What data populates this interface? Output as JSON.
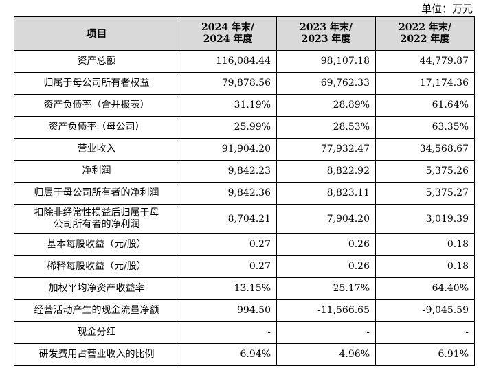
{
  "unit": "单位：万元",
  "header": {
    "item": "项目",
    "col2024_line1": "2024 年末/",
    "col2024_line2": "2024 年度",
    "col2023_line1": "2023 年末/",
    "col2023_line2": "2023 年度",
    "col2022_line1": "2022 年末/",
    "col2022_line2": "2022 年度"
  },
  "rows": [
    {
      "label": "资产总额",
      "v2024": "116,084.44",
      "v2023": "98,107.18",
      "v2022": "44,779.87"
    },
    {
      "label": "归属于母公司所有者权益",
      "v2024": "79,878.56",
      "v2023": "69,762.33",
      "v2022": "17,174.36"
    },
    {
      "label": "资产负债率（合并报表）",
      "v2024": "31.19%",
      "v2023": "28.89%",
      "v2022": "61.64%"
    },
    {
      "label": "资产负债率（母公司）",
      "v2024": "25.99%",
      "v2023": "28.53%",
      "v2022": "63.35%"
    },
    {
      "label": "营业收入",
      "v2024": "91,904.20",
      "v2023": "77,932.47",
      "v2022": "34,568.67"
    },
    {
      "label": "净利润",
      "v2024": "9,842.23",
      "v2023": "8,822.92",
      "v2022": "5,375.26"
    },
    {
      "label": "归属于母公司所有者的净利润",
      "v2024": "9,842.36",
      "v2023": "8,823.11",
      "v2022": "5,375.27"
    },
    {
      "label_line1": "扣除非经常性损益后归属于母",
      "label_line2": "公司所有者的净利润",
      "v2024": "8,704.21",
      "v2023": "7,904.20",
      "v2022": "3,019.39"
    },
    {
      "label": "基本每股收益（元/股）",
      "v2024": "0.27",
      "v2023": "0.26",
      "v2022": "0.18"
    },
    {
      "label": "稀释每股收益（元/股）",
      "v2024": "0.27",
      "v2023": "0.26",
      "v2022": "0.18"
    },
    {
      "label": "加权平均净资产收益率",
      "v2024": "13.15%",
      "v2023": "25.17%",
      "v2022": "64.40%"
    },
    {
      "label": "经营活动产生的现金流量净额",
      "v2024": "994.50",
      "v2023": "-11,566.65",
      "v2022": "-9,045.59"
    },
    {
      "label": "现金分红",
      "v2024": "-",
      "v2023": "-",
      "v2022": "-"
    },
    {
      "label": "研发费用占营业收入的比例",
      "v2024": "6.94%",
      "v2023": "4.96%",
      "v2022": "6.91%"
    }
  ]
}
